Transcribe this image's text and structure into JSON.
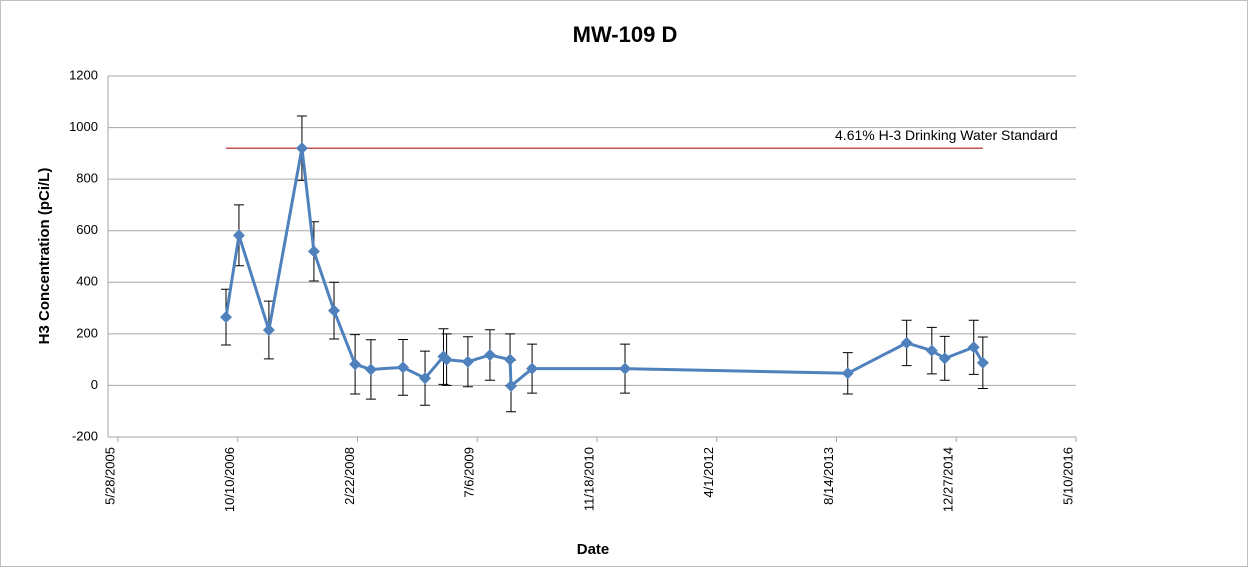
{
  "chart_data": {
    "type": "line",
    "title": "MW-109 D",
    "x_label": "Date",
    "y_label": "H3 Concentration (pCi/L)",
    "x": [
      "2006-08-22",
      "2006-10-15",
      "2007-02-17",
      "2007-07-05",
      "2007-08-24",
      "2007-11-16",
      "2008-02-12",
      "2008-04-18",
      "2008-08-30",
      "2008-11-30",
      "2009-02-15",
      "2009-02-28",
      "2009-05-28",
      "2009-08-28",
      "2009-11-20",
      "2009-11-24",
      "2010-02-20",
      "2011-03-15",
      "2013-09-30",
      "2014-06-03",
      "2014-09-16",
      "2014-11-09",
      "2015-03-10",
      "2015-04-17"
    ],
    "values": [
      265,
      582,
      215,
      920,
      520,
      290,
      82,
      62,
      70,
      28,
      112,
      100,
      92,
      118,
      100,
      -2,
      65,
      65,
      47,
      165,
      135,
      105,
      148,
      88
    ],
    "errors": [
      108,
      118,
      112,
      125,
      115,
      110,
      115,
      115,
      108,
      105,
      108,
      100,
      97,
      98,
      100,
      100,
      95,
      95,
      80,
      88,
      90,
      85,
      105,
      100
    ],
    "color": "#4f81bd",
    "threshold": {
      "label": "4.61% H-3 Drinking  Water Standard",
      "value": 920,
      "x": [
        "2006-08-22",
        "2015-04-17"
      ],
      "color": "#c0504d"
    },
    "xlim": [
      "2005-05-28",
      "2016-05-10"
    ],
    "xticks": [
      {
        "value": "2005-05-28",
        "label": "5/28/2005"
      },
      {
        "value": "2006-10-10",
        "label": "10/10/2006"
      },
      {
        "value": "2008-02-22",
        "label": "2/22/2008"
      },
      {
        "value": "2009-07-06",
        "label": "7/6/2009"
      },
      {
        "value": "2010-11-18",
        "label": "11/18/2010"
      },
      {
        "value": "2012-04-01",
        "label": "4/1/2012"
      },
      {
        "value": "2013-08-14",
        "label": "8/14/2013"
      },
      {
        "value": "2014-12-27",
        "label": "12/27/2014"
      },
      {
        "value": "2016-05-10",
        "label": "5/10/2016"
      }
    ],
    "ylim": [
      -200,
      1200
    ],
    "yticks": [
      -200,
      0,
      200,
      400,
      600,
      800,
      1000,
      1200
    ],
    "grid": true
  }
}
